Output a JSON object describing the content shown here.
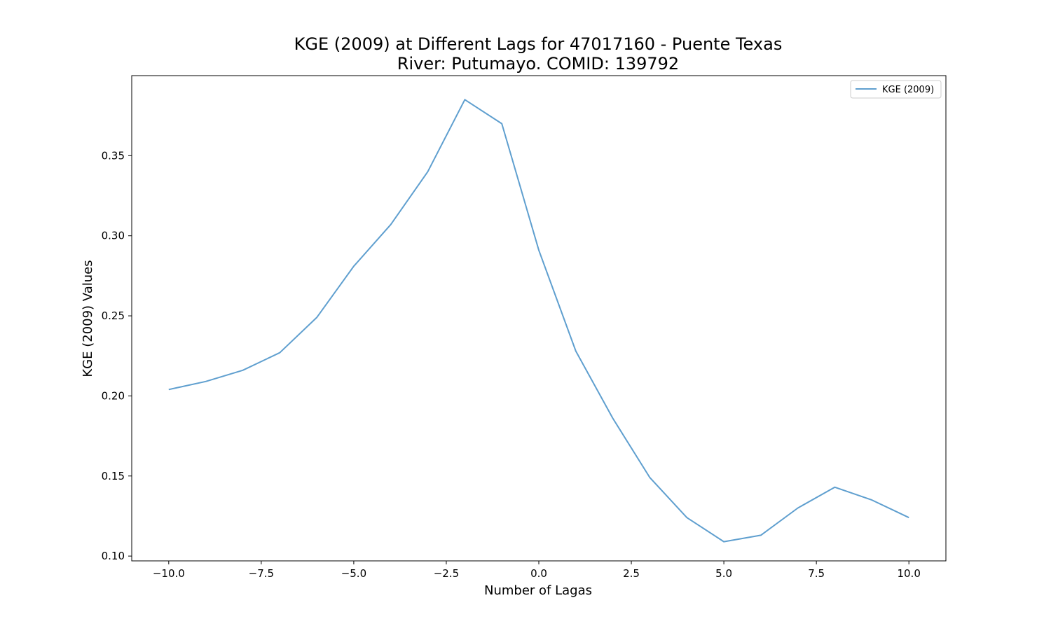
{
  "chart_data": {
    "type": "line",
    "title": "KGE (2009) at Different Lags for 47017160 - Puente Texas",
    "subtitle": "River: Putumayo. COMID: 139792",
    "xlabel": "Number of Lagas",
    "ylabel": "KGE (2009) Values",
    "xlim": [
      -11,
      11
    ],
    "ylim": [
      0.097,
      0.4
    ],
    "xticks": [
      -10.0,
      -7.5,
      -5.0,
      -2.5,
      0.0,
      2.5,
      5.0,
      7.5,
      10.0
    ],
    "xtick_labels": [
      "−10.0",
      "−7.5",
      "−5.0",
      "−2.5",
      "0.0",
      "2.5",
      "5.0",
      "7.5",
      "10.0"
    ],
    "yticks": [
      0.1,
      0.15,
      0.2,
      0.25,
      0.3,
      0.35
    ],
    "ytick_labels": [
      "0.10",
      "0.15",
      "0.20",
      "0.25",
      "0.30",
      "0.35"
    ],
    "grid": false,
    "legend_position": "top-right",
    "series": [
      {
        "name": "KGE (2009)",
        "color": "#5f9fcf",
        "x": [
          -10,
          -9,
          -8,
          -7,
          -6,
          -5,
          -4,
          -3,
          -2,
          -1,
          0,
          1,
          2,
          3,
          4,
          5,
          6,
          7,
          8,
          9,
          10
        ],
        "y": [
          0.204,
          0.209,
          0.216,
          0.227,
          0.249,
          0.281,
          0.307,
          0.34,
          0.385,
          0.37,
          0.291,
          0.228,
          0.186,
          0.149,
          0.124,
          0.109,
          0.113,
          0.13,
          0.143,
          0.135,
          0.124
        ]
      }
    ]
  }
}
